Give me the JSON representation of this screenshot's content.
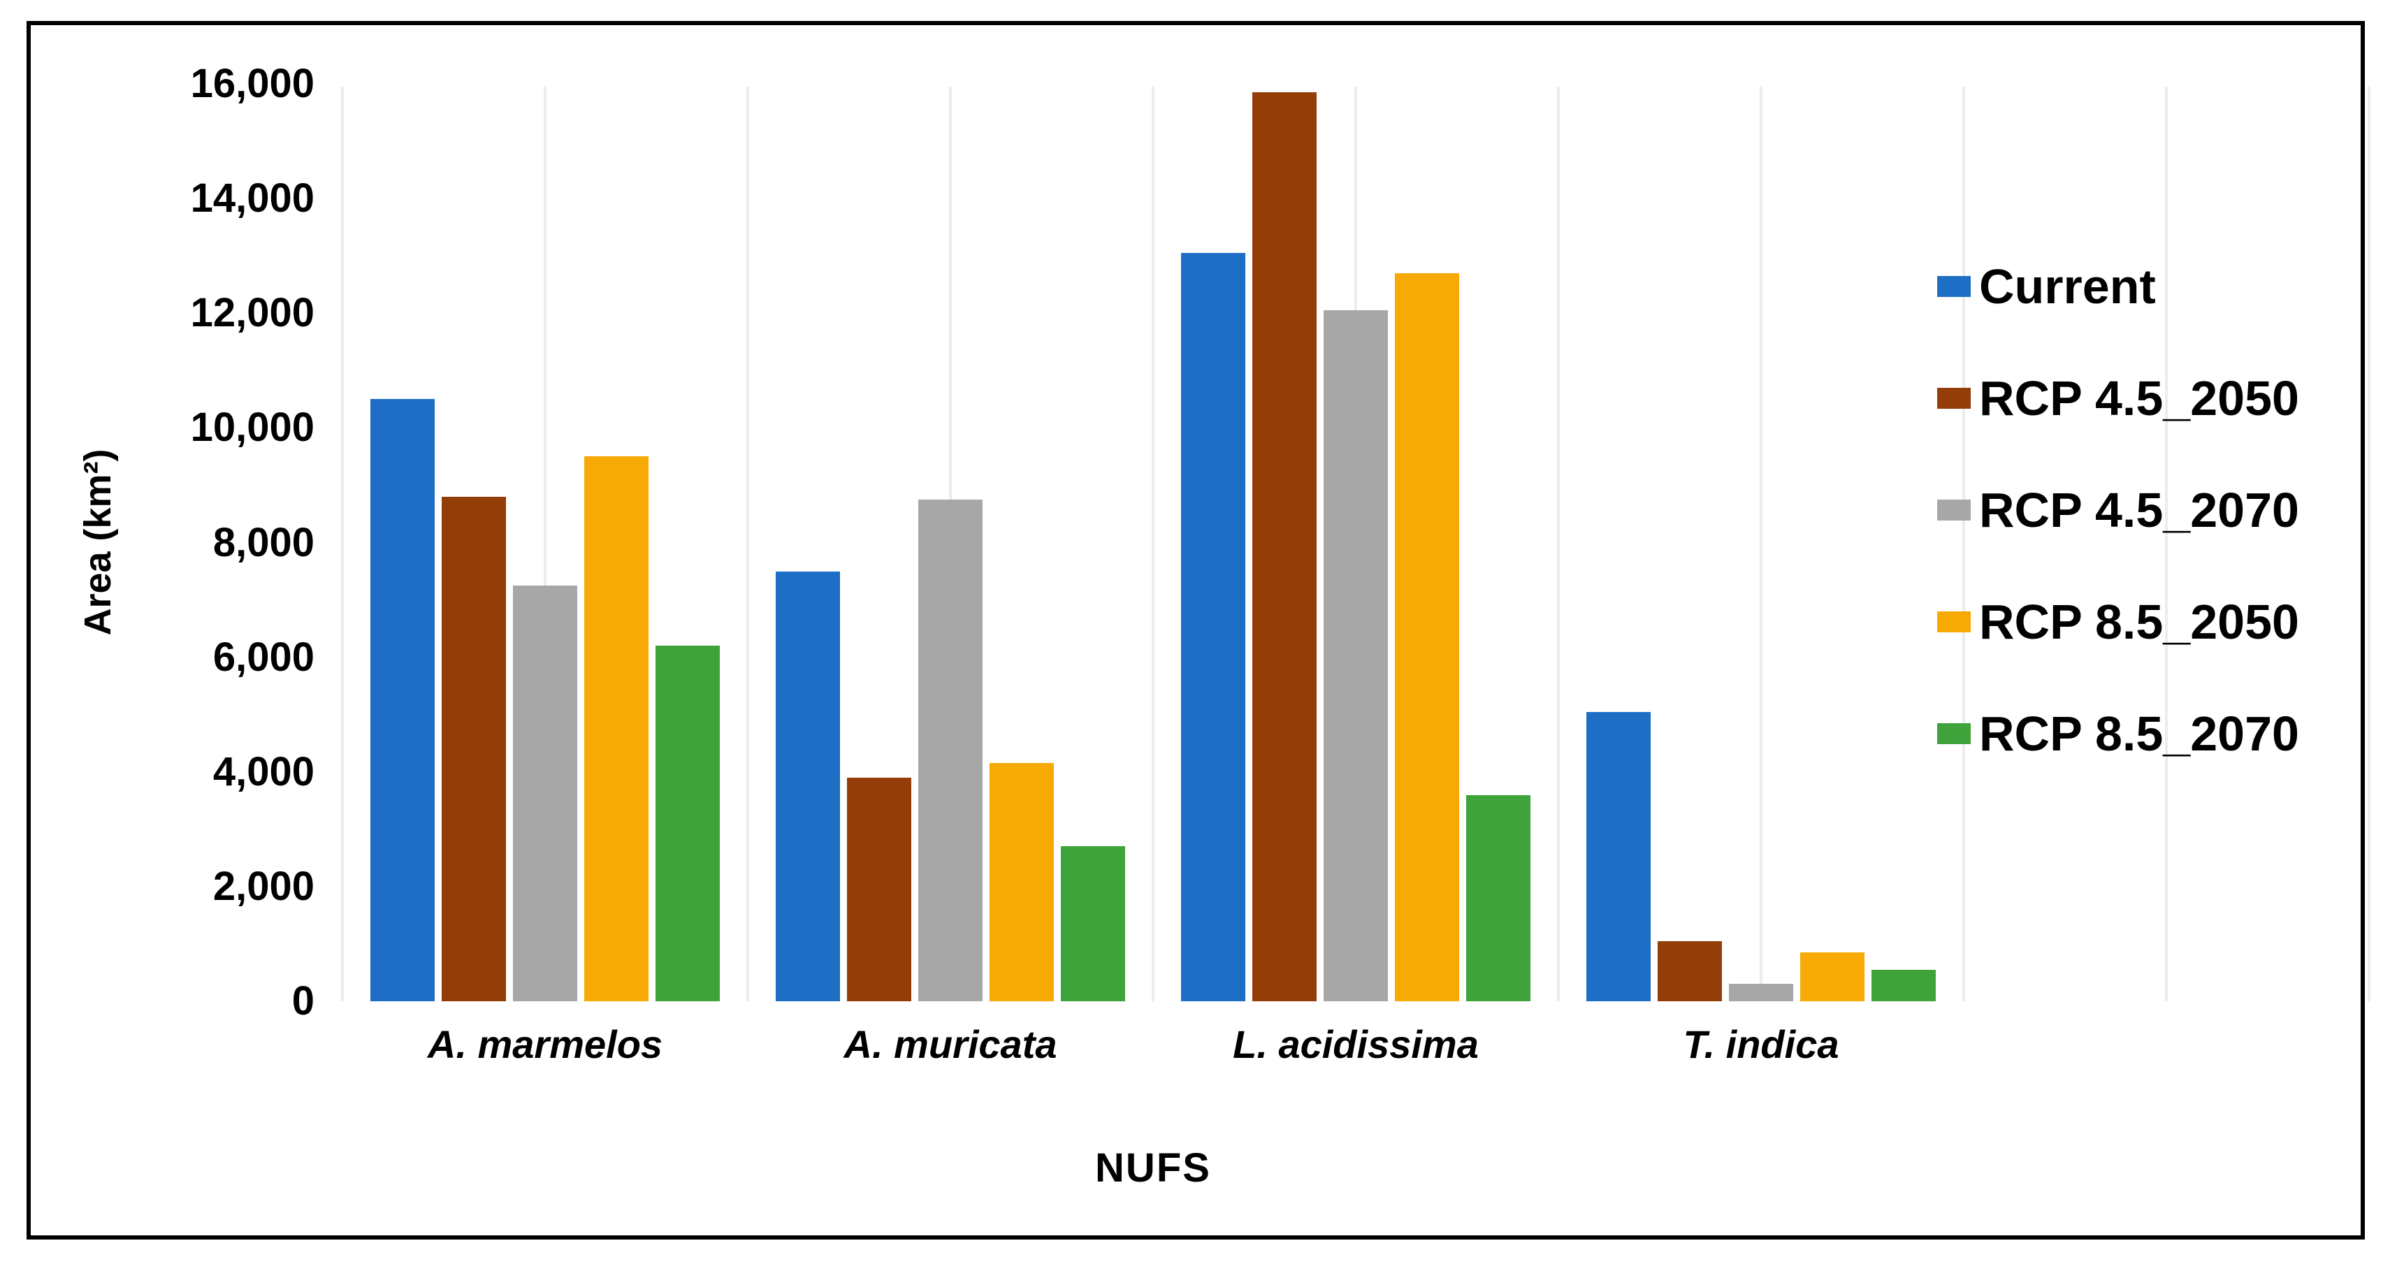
{
  "figure": {
    "background": "#ffffff",
    "border_color": "#000000",
    "gridline_color": "#ECECEC",
    "text_color": "#000000"
  },
  "chart_data": {
    "type": "bar",
    "title": "",
    "xlabel": "NUFS",
    "ylabel": "Area (km²)",
    "ylim": [
      0,
      16000
    ],
    "ytick_step": 2000,
    "ytick_labels": [
      "0",
      "2,000",
      "4,000",
      "6,000",
      "8,000",
      "10,000",
      "12,000",
      "14,000",
      "16,000"
    ],
    "grid": "vertical-only",
    "legend_position": "right",
    "categories": [
      "A. marmelos",
      "A. muricata",
      "L. acidissima",
      "T. indica"
    ],
    "series": [
      {
        "name": "Current",
        "color": "#1F6EC6",
        "values": [
          10500,
          7500,
          13050,
          5050
        ]
      },
      {
        "name": "RCP 4.5_2050",
        "color": "#933D08",
        "values": [
          8800,
          3900,
          15850,
          1050
        ]
      },
      {
        "name": "RCP 4.5_2070",
        "color": "#A7A7A7",
        "values": [
          7250,
          8750,
          12050,
          300
        ]
      },
      {
        "name": "RCP 8.5_2050",
        "color": "#F7A906",
        "values": [
          9500,
          4150,
          12700,
          850
        ]
      },
      {
        "name": "RCP 8.5_2070",
        "color": "#3FA33C",
        "values": [
          6200,
          2700,
          3600,
          550
        ]
      }
    ]
  }
}
